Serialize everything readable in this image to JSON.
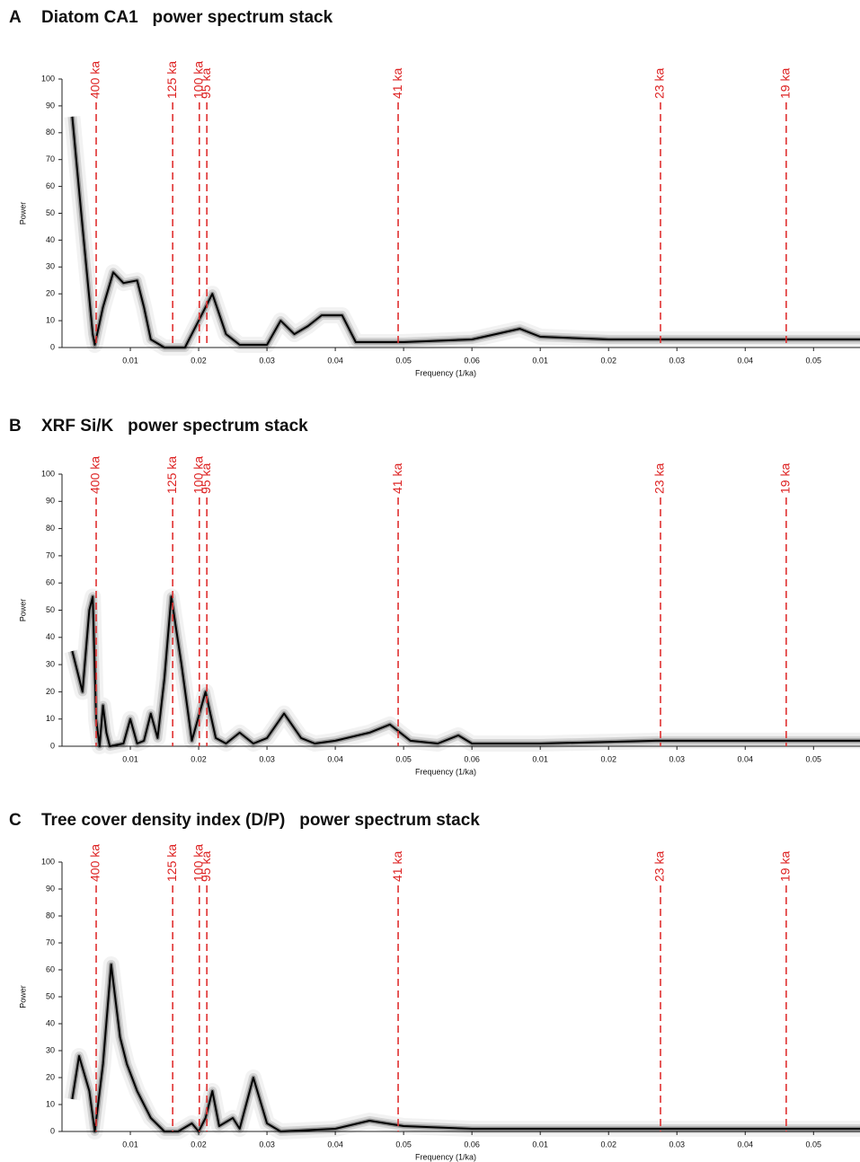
{
  "chart_data": [
    {
      "type": "line",
      "panel_label": "A",
      "title": "Diatom CA1   power spectrum stack",
      "xlabel": "Frequency (1/ka)",
      "ylabel": "Power",
      "x": [
        0.0015,
        0.003,
        0.0045,
        0.0048,
        0.006,
        0.0075,
        0.009,
        0.011,
        0.012,
        0.013,
        0.015,
        0.018,
        0.02,
        0.022,
        0.024,
        0.026,
        0.03,
        0.032,
        0.034,
        0.036,
        0.038,
        0.041,
        0.043,
        0.05,
        0.06,
        0.067,
        0.07,
        0.08,
        0.09,
        0.1,
        0.1168
      ],
      "series": [
        {
          "color": "#000000",
          "values": [
            86,
            45,
            5,
            1,
            15,
            28,
            24,
            25,
            15,
            3,
            0,
            0,
            10,
            20,
            5,
            1,
            1,
            10,
            5,
            8,
            12,
            12,
            2,
            2,
            3,
            7,
            4,
            3,
            3,
            3,
            3
          ]
        }
      ],
      "xlim": [
        0,
        0.1168
      ],
      "ylim": [
        0,
        100
      ],
      "yticks": [
        0,
        10,
        20,
        30,
        40,
        50,
        60,
        70,
        80,
        90,
        100
      ],
      "xticks": [
        0.01,
        0.02,
        0.03,
        0.04,
        0.05,
        0.06,
        {
          "value": 0.07,
          "label": "0.01"
        },
        {
          "value": 0.08,
          "label": "0.02"
        },
        {
          "value": 0.09,
          "label": "0.03"
        },
        {
          "value": 0.1,
          "label": "0.04"
        },
        {
          "value": 0.11,
          "label": "0.05"
        }
      ],
      "annotations": [
        {
          "label": "400 ka",
          "x": 0.005
        },
        {
          "label": "125 ka",
          "x": 0.0162
        },
        {
          "label": "100 ka",
          "x": 0.0201
        },
        {
          "label": "95 ka",
          "x": 0.0212
        },
        {
          "label": "41 ka",
          "x": 0.0492
        },
        {
          "label": "23 ka",
          "x": 0.0876
        },
        {
          "label": "19 ka",
          "x": 0.106
        }
      ]
    },
    {
      "type": "line",
      "panel_label": "B",
      "title": "XRF Si/K   power spectrum stack",
      "xlabel": "Frequency (1/ka)",
      "ylabel": "Power",
      "x": [
        0.0015,
        0.003,
        0.004,
        0.0045,
        0.005,
        0.0055,
        0.006,
        0.0065,
        0.007,
        0.009,
        0.01,
        0.011,
        0.012,
        0.013,
        0.014,
        0.015,
        0.016,
        0.0175,
        0.019,
        0.021,
        0.0225,
        0.024,
        0.026,
        0.028,
        0.03,
        0.0325,
        0.035,
        0.037,
        0.04,
        0.045,
        0.048,
        0.051,
        0.055,
        0.058,
        0.06,
        0.07,
        0.087,
        0.1,
        0.1168
      ],
      "series": [
        {
          "color": "#000000",
          "values": [
            35,
            20,
            50,
            55,
            10,
            0,
            15,
            5,
            0,
            1,
            10,
            1,
            2,
            12,
            3,
            25,
            55,
            30,
            2,
            20,
            3,
            1,
            5,
            1,
            3,
            12,
            3,
            1,
            2,
            5,
            8,
            2,
            1,
            4,
            1,
            1,
            2,
            2,
            2
          ]
        }
      ],
      "xlim": [
        0,
        0.1168
      ],
      "ylim": [
        0,
        100
      ],
      "yticks": [
        0,
        10,
        20,
        30,
        40,
        50,
        60,
        70,
        80,
        90,
        100
      ],
      "xticks": [
        0.01,
        0.02,
        0.03,
        0.04,
        0.05,
        0.06,
        {
          "value": 0.07,
          "label": "0.01"
        },
        {
          "value": 0.08,
          "label": "0.02"
        },
        {
          "value": 0.09,
          "label": "0.03"
        },
        {
          "value": 0.1,
          "label": "0.04"
        },
        {
          "value": 0.11,
          "label": "0.05"
        }
      ],
      "annotations": [
        {
          "label": "400 ka",
          "x": 0.005
        },
        {
          "label": "125 ka",
          "x": 0.0162
        },
        {
          "label": "100 ka",
          "x": 0.0201
        },
        {
          "label": "95 ka",
          "x": 0.0212
        },
        {
          "label": "41 ka",
          "x": 0.0492
        },
        {
          "label": "23 ka",
          "x": 0.0876
        },
        {
          "label": "19 ka",
          "x": 0.106
        }
      ]
    },
    {
      "type": "line",
      "panel_label": "C",
      "title": "Tree cover density index (D/P)   power spectrum stack",
      "xlabel": "Frequency (1/ka)",
      "ylabel": "Power",
      "x": [
        0.0015,
        0.0025,
        0.004,
        0.0048,
        0.006,
        0.0072,
        0.0085,
        0.0095,
        0.011,
        0.013,
        0.015,
        0.017,
        0.019,
        0.02,
        0.021,
        0.022,
        0.023,
        0.025,
        0.026,
        0.028,
        0.03,
        0.032,
        0.04,
        0.045,
        0.05,
        0.06,
        0.07,
        0.09,
        0.1168
      ],
      "series": [
        {
          "color": "#000000",
          "values": [
            12,
            28,
            15,
            0,
            25,
            62,
            35,
            25,
            15,
            5,
            0,
            0,
            3,
            0,
            5,
            15,
            2,
            5,
            1,
            20,
            3,
            0,
            1,
            4,
            2,
            1,
            1,
            1,
            1
          ]
        }
      ],
      "xlim": [
        0,
        0.1168
      ],
      "ylim": [
        0,
        100
      ],
      "yticks": [
        0,
        10,
        20,
        30,
        40,
        50,
        60,
        70,
        80,
        90,
        100
      ],
      "xticks": [
        0.01,
        0.02,
        0.03,
        0.04,
        0.05,
        0.06,
        {
          "value": 0.07,
          "label": "0.01"
        },
        {
          "value": 0.08,
          "label": "0.02"
        },
        {
          "value": 0.09,
          "label": "0.03"
        },
        {
          "value": 0.1,
          "label": "0.04"
        },
        {
          "value": 0.11,
          "label": "0.05"
        }
      ],
      "annotations": [
        {
          "label": "400 ka",
          "x": 0.005
        },
        {
          "label": "125 ka",
          "x": 0.0162
        },
        {
          "label": "100 ka",
          "x": 0.0201
        },
        {
          "label": "95 ka",
          "x": 0.0212
        },
        {
          "label": "41 ka",
          "x": 0.0492
        },
        {
          "label": "23 ka",
          "x": 0.0876
        },
        {
          "label": "19 ka",
          "x": 0.106
        }
      ]
    }
  ]
}
